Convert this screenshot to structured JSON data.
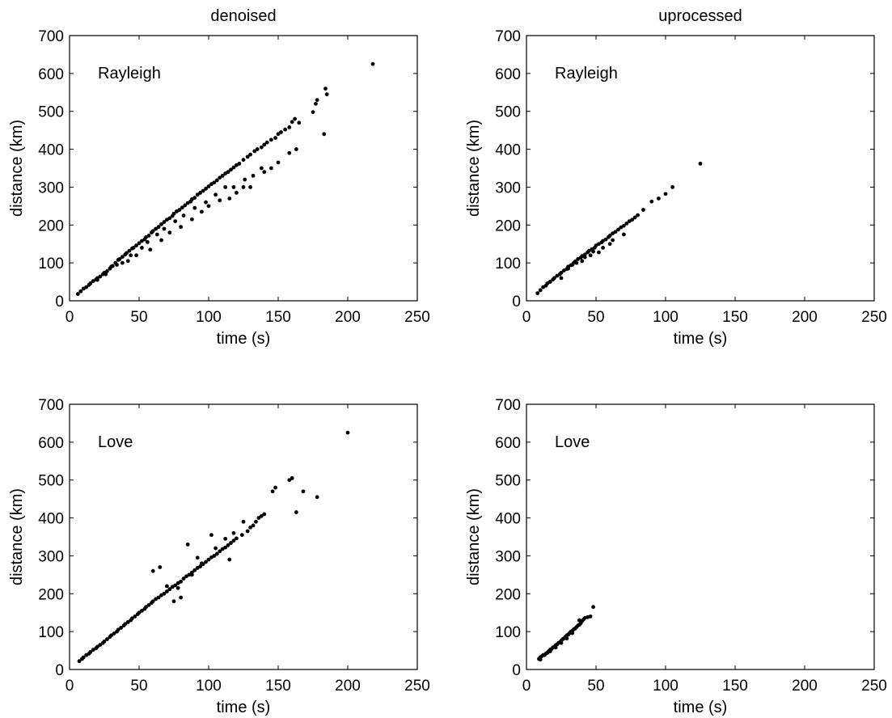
{
  "column_titles": [
    "denoised",
    "uprocessed"
  ],
  "chart_data": [
    {
      "type": "scatter",
      "panel": "denoised-rayleigh",
      "title": "denoised",
      "annotation": "Rayleigh",
      "xlabel": "time (s)",
      "ylabel": "distance (km)",
      "xlim": [
        0,
        250
      ],
      "ylim": [
        0,
        700
      ],
      "xticks": [
        0,
        50,
        100,
        150,
        200,
        250
      ],
      "yticks": [
        0,
        100,
        200,
        300,
        400,
        500,
        600,
        700
      ],
      "grid": false,
      "series": [
        {
          "x": [
            6,
            8,
            10,
            12,
            14,
            15,
            17,
            19,
            20,
            22,
            24,
            25,
            27,
            29,
            30,
            31,
            33,
            35,
            36,
            38,
            40,
            41,
            43,
            45,
            46,
            48,
            50,
            52,
            54,
            55,
            57,
            59,
            60,
            62,
            64,
            66,
            68,
            70,
            72,
            74,
            75,
            77,
            79,
            81,
            83,
            85,
            87,
            88,
            90,
            92,
            94,
            96,
            98,
            100,
            102,
            104,
            106,
            108,
            110,
            112,
            114,
            116,
            118,
            120,
            122,
            125,
            128,
            130,
            133,
            135,
            138,
            140,
            142,
            145,
            148,
            150,
            152,
            155,
            158,
            160,
            162,
            163,
            165,
            175,
            177,
            178,
            183,
            184,
            185,
            218,
            42,
            48,
            58,
            66,
            72,
            80,
            88,
            95,
            100,
            108,
            115,
            120,
            125,
            132,
            140,
            145,
            20,
            26,
            34,
            38,
            44,
            52,
            56,
            63,
            68,
            76,
            82,
            90,
            98,
            105,
            112,
            118,
            126,
            130,
            138,
            150,
            158
          ],
          "y": [
            18,
            25,
            32,
            36,
            42,
            46,
            52,
            56,
            60,
            64,
            70,
            74,
            78,
            85,
            90,
            92,
            100,
            108,
            110,
            116,
            122,
            126,
            132,
            138,
            140,
            146,
            152,
            158,
            162,
            168,
            172,
            180,
            184,
            190,
            195,
            202,
            208,
            214,
            218,
            224,
            230,
            236,
            240,
            246,
            252,
            258,
            262,
            268,
            272,
            280,
            285,
            290,
            296,
            302,
            308,
            312,
            318,
            325,
            330,
            336,
            340,
            346,
            352,
            358,
            362,
            372,
            380,
            386,
            395,
            400,
            405,
            412,
            418,
            425,
            430,
            440,
            445,
            452,
            458,
            472,
            480,
            400,
            470,
            498,
            520,
            530,
            440,
            560,
            545,
            625,
            105,
            120,
            135,
            160,
            180,
            195,
            215,
            235,
            250,
            265,
            270,
            285,
            300,
            330,
            340,
            350,
            55,
            70,
            95,
            100,
            120,
            140,
            155,
            175,
            190,
            210,
            225,
            245,
            260,
            280,
            300,
            300,
            320,
            300,
            350,
            365,
            390
          ]
        }
      ]
    },
    {
      "type": "scatter",
      "panel": "uprocessed-rayleigh",
      "title": "uprocessed",
      "annotation": "Rayleigh",
      "xlabel": "time (s)",
      "ylabel": "distance (km)",
      "xlim": [
        0,
        250
      ],
      "ylim": [
        0,
        700
      ],
      "xticks": [
        0,
        50,
        100,
        150,
        200,
        250
      ],
      "yticks": [
        0,
        100,
        200,
        300,
        400,
        500,
        600,
        700
      ],
      "grid": false,
      "series": [
        {
          "x": [
            8,
            10,
            12,
            14,
            15,
            17,
            19,
            20,
            22,
            24,
            25,
            27,
            29,
            30,
            32,
            34,
            35,
            37,
            39,
            40,
            42,
            44,
            45,
            47,
            49,
            50,
            52,
            54,
            55,
            57,
            59,
            60,
            62,
            64,
            66,
            68,
            70,
            72,
            74,
            76,
            78,
            80,
            84,
            90,
            95,
            100,
            105,
            125,
            30,
            36,
            42,
            48,
            55,
            62,
            70,
            25,
            33,
            40,
            46,
            52,
            60
          ],
          "y": [
            20,
            28,
            36,
            40,
            46,
            50,
            56,
            60,
            66,
            70,
            74,
            80,
            84,
            90,
            94,
            100,
            104,
            110,
            114,
            118,
            122,
            128,
            132,
            136,
            140,
            146,
            150,
            154,
            158,
            162,
            168,
            172,
            178,
            182,
            188,
            194,
            198,
            204,
            210,
            214,
            220,
            226,
            240,
            262,
            270,
            282,
            300,
            362,
            85,
            100,
            115,
            130,
            140,
            160,
            175,
            60,
            95,
            105,
            120,
            128,
            150
          ]
        }
      ]
    },
    {
      "type": "scatter",
      "panel": "denoised-love",
      "annotation": "Love",
      "xlabel": "time (s)",
      "ylabel": "distance (km)",
      "xlim": [
        0,
        250
      ],
      "ylim": [
        0,
        700
      ],
      "xticks": [
        0,
        50,
        100,
        150,
        200,
        250
      ],
      "yticks": [
        0,
        100,
        200,
        300,
        400,
        500,
        600,
        700
      ],
      "grid": false,
      "series": [
        {
          "x": [
            7,
            9,
            10,
            12,
            14,
            15,
            17,
            19,
            20,
            22,
            24,
            25,
            27,
            29,
            30,
            32,
            34,
            35,
            37,
            39,
            40,
            42,
            44,
            45,
            47,
            49,
            50,
            52,
            54,
            55,
            57,
            59,
            60,
            62,
            64,
            66,
            68,
            70,
            72,
            74,
            76,
            78,
            80,
            82,
            84,
            86,
            88,
            90,
            92,
            94,
            96,
            98,
            100,
            102,
            104,
            106,
            108,
            110,
            112,
            114,
            116,
            118,
            120,
            124,
            128,
            130,
            132,
            134,
            136,
            138,
            140,
            146,
            148,
            158,
            160,
            163,
            168,
            178,
            200,
            75,
            80,
            85,
            92,
            102,
            112,
            118,
            60,
            65,
            70,
            78,
            88,
            95,
            105,
            115,
            125
          ],
          "y": [
            22,
            28,
            32,
            38,
            42,
            46,
            52,
            56,
            60,
            65,
            70,
            74,
            80,
            86,
            90,
            95,
            100,
            105,
            110,
            116,
            120,
            125,
            130,
            135,
            140,
            146,
            150,
            155,
            160,
            165,
            170,
            176,
            180,
            186,
            190,
            196,
            200,
            206,
            212,
            218,
            222,
            228,
            232,
            240,
            246,
            250,
            256,
            262,
            268,
            272,
            278,
            284,
            290,
            296,
            300,
            305,
            312,
            318,
            322,
            328,
            334,
            340,
            346,
            355,
            365,
            375,
            380,
            390,
            400,
            405,
            410,
            470,
            480,
            500,
            505,
            415,
            470,
            455,
            625,
            180,
            190,
            330,
            295,
            355,
            345,
            360,
            260,
            270,
            220,
            215,
            250,
            280,
            320,
            290,
            390
          ]
        }
      ]
    },
    {
      "type": "scatter",
      "panel": "uprocessed-love",
      "annotation": "Love",
      "xlabel": "time (s)",
      "ylabel": "distance (km)",
      "xlim": [
        0,
        250
      ],
      "ylim": [
        0,
        700
      ],
      "xticks": [
        0,
        50,
        100,
        150,
        200,
        250
      ],
      "yticks": [
        0,
        100,
        200,
        300,
        400,
        500,
        600,
        700
      ],
      "grid": false,
      "series": [
        {
          "x": [
            9,
            10,
            11,
            12,
            14,
            15,
            16,
            17,
            18,
            19,
            20,
            21,
            22,
            23,
            24,
            25,
            26,
            27,
            28,
            29,
            30,
            31,
            32,
            33,
            34,
            35,
            36,
            37,
            38,
            39,
            40,
            41,
            42,
            44,
            46,
            48,
            10,
            13,
            17,
            21,
            25,
            29,
            33,
            38
          ],
          "y": [
            28,
            32,
            35,
            38,
            42,
            44,
            48,
            52,
            54,
            58,
            60,
            64,
            66,
            70,
            72,
            76,
            80,
            82,
            86,
            90,
            92,
            96,
            100,
            102,
            106,
            108,
            112,
            116,
            118,
            122,
            128,
            132,
            136,
            138,
            140,
            165,
            26,
            38,
            48,
            58,
            70,
            82,
            96,
            130
          ]
        }
      ]
    }
  ]
}
